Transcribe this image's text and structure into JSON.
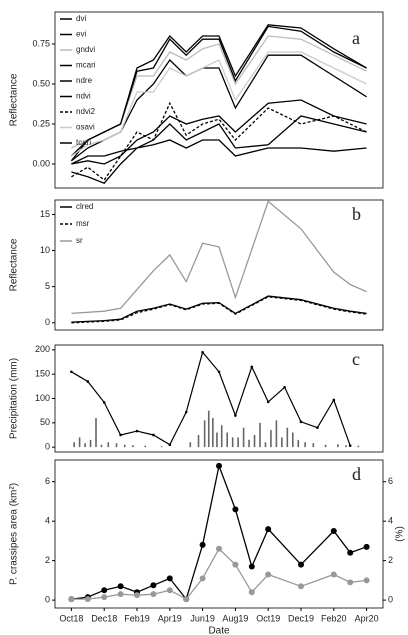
{
  "chart_data": [
    {
      "type": "line",
      "annotation": "a",
      "ylabel": "Reflectance",
      "xlim": [
        "2018-09",
        "2020-05"
      ],
      "x": [
        "2018-10",
        "2018-11",
        "2018-12",
        "2019-01",
        "2019-02",
        "2019-03",
        "2019-04",
        "2019-05",
        "2019-06",
        "2019-07",
        "2019-08",
        "2019-10",
        "2019-12",
        "2020-02",
        "2020-04"
      ],
      "ylim": [
        -0.15,
        0.95
      ],
      "yticks": [
        {
          "value": 0,
          "label": "0.00"
        },
        0.25,
        {
          "value": 0.5,
          "label": "0.50"
        },
        0.75
      ],
      "legend": "top-left",
      "series": [
        {
          "name": "dvi",
          "color": "#000000",
          "values": [
            0.05,
            0.15,
            0.2,
            0.25,
            0.6,
            0.65,
            0.8,
            0.7,
            0.8,
            0.8,
            0.55,
            0.87,
            0.85,
            0.72,
            0.6
          ]
        },
        {
          "name": "evi",
          "color": "#000000",
          "values": [
            0.02,
            0.1,
            0.15,
            0.2,
            0.4,
            0.5,
            0.65,
            0.55,
            0.6,
            0.6,
            0.35,
            0.68,
            0.68,
            0.55,
            0.42
          ]
        },
        {
          "name": "gndvi",
          "color": "#bbbbbb",
          "values": [
            0.1,
            0.15,
            0.2,
            0.25,
            0.55,
            0.55,
            0.7,
            0.65,
            0.72,
            0.75,
            0.5,
            0.8,
            0.78,
            0.68,
            0.58
          ]
        },
        {
          "name": "mcari",
          "color": "#000000",
          "values": [
            0.0,
            0.02,
            0.0,
            0.05,
            0.15,
            0.2,
            0.3,
            0.25,
            0.28,
            0.3,
            0.2,
            0.38,
            0.4,
            0.3,
            0.25
          ]
        },
        {
          "name": "ndre",
          "color": "#000000",
          "values": [
            0.0,
            0.05,
            0.05,
            0.08,
            0.1,
            0.12,
            0.15,
            0.1,
            0.15,
            0.15,
            0.05,
            0.1,
            0.1,
            0.08,
            0.1
          ]
        },
        {
          "name": "ndvi",
          "color": "#000000",
          "values": [
            0.02,
            0.15,
            0.2,
            0.25,
            0.58,
            0.6,
            0.78,
            0.68,
            0.78,
            0.78,
            0.52,
            0.86,
            0.83,
            0.7,
            0.6
          ]
        },
        {
          "name": "ndvi2",
          "color": "#000000",
          "dash": true,
          "values": [
            -0.08,
            -0.02,
            -0.1,
            0.05,
            0.2,
            0.15,
            0.38,
            0.18,
            0.25,
            0.28,
            0.15,
            0.35,
            0.25,
            0.3,
            0.2
          ]
        },
        {
          "name": "osavi",
          "color": "#cccccc",
          "values": [
            0.05,
            0.12,
            0.15,
            0.2,
            0.45,
            0.45,
            0.6,
            0.55,
            0.6,
            0.65,
            0.4,
            0.7,
            0.7,
            0.6,
            0.5
          ]
        },
        {
          "name": "tcari",
          "color": "#000000",
          "values": [
            -0.05,
            -0.08,
            -0.12,
            0.0,
            0.1,
            0.15,
            0.25,
            0.15,
            0.2,
            0.25,
            0.1,
            0.12,
            0.3,
            0.25,
            0.2
          ]
        }
      ]
    },
    {
      "type": "line",
      "annotation": "b",
      "ylabel": "Reflectance",
      "xlim": [
        "2018-09",
        "2020-05"
      ],
      "x": [
        "2018-10",
        "2018-12",
        "2019-01",
        "2019-02",
        "2019-03",
        "2019-04",
        "2019-05",
        "2019-06",
        "2019-07",
        "2019-08",
        "2019-10",
        "2019-12",
        "2020-02",
        "2020-03",
        "2020-04"
      ],
      "ylim": [
        -1,
        17
      ],
      "yticks": [
        0,
        5,
        10,
        15
      ],
      "legend": "top-left",
      "series": [
        {
          "name": "clred",
          "color": "#000000",
          "values": [
            0.1,
            0.3,
            0.5,
            1.6,
            2.0,
            2.6,
            1.9,
            2.7,
            2.8,
            1.3,
            3.7,
            3.2,
            2.0,
            1.6,
            1.3
          ]
        },
        {
          "name": "msr",
          "color": "#000000",
          "dash": true,
          "values": [
            0.0,
            0.2,
            0.4,
            1.4,
            1.9,
            2.5,
            1.8,
            2.6,
            2.7,
            1.2,
            3.6,
            3.1,
            1.9,
            1.5,
            1.2
          ]
        },
        {
          "name": "sr",
          "color": "#999999",
          "values": [
            1.3,
            1.6,
            2.0,
            4.6,
            7.2,
            9.4,
            5.7,
            11,
            10.5,
            3.5,
            16.8,
            13,
            7,
            5.3,
            4.3
          ]
        }
      ]
    },
    {
      "type": "bar",
      "annotation": "c",
      "ylabel": "Precipitation (mm)",
      "xlim": [
        "2018-09",
        "2020-05"
      ],
      "ylim": [
        -10,
        210
      ],
      "yticks": [
        0,
        50,
        100,
        150,
        200
      ],
      "bars": {
        "color": "#666666",
        "x": [
          "2018-10",
          "2018-10",
          "2018-10",
          "2018-11",
          "2018-11",
          "2018-11",
          "2018-12",
          "2018-12",
          "2019-01",
          "2019-01",
          "2019-02",
          "2019-03",
          "2019-05",
          "2019-05",
          "2019-06",
          "2019-06",
          "2019-06",
          "2019-06",
          "2019-07",
          "2019-07",
          "2019-07",
          "2019-08",
          "2019-08",
          "2019-08",
          "2019-09",
          "2019-09",
          "2019-09",
          "2019-10",
          "2019-10",
          "2019-10",
          "2019-11",
          "2019-11",
          "2019-11",
          "2019-12",
          "2019-12",
          "2020-01",
          "2020-02",
          "2020-02",
          "2020-03"
        ],
        "values": [
          10,
          20,
          8,
          15,
          60,
          5,
          10,
          8,
          5,
          4,
          3,
          2,
          10,
          25,
          55,
          75,
          60,
          30,
          45,
          30,
          20,
          20,
          40,
          15,
          25,
          50,
          10,
          35,
          55,
          20,
          40,
          30,
          15,
          10,
          8,
          5,
          6,
          4,
          3
        ]
      },
      "line": {
        "color": "#000000",
        "x": [
          "2018-10",
          "2018-11",
          "2018-12",
          "2019-01",
          "2019-02",
          "2019-03",
          "2019-04",
          "2019-05",
          "2019-06",
          "2019-07",
          "2019-08",
          "2019-09",
          "2019-10",
          "2019-11",
          "2019-12",
          "2020-01",
          "2020-02",
          "2020-03"
        ],
        "values": [
          155,
          135,
          92,
          25,
          33,
          25,
          5,
          72,
          195,
          155,
          65,
          165,
          93,
          123,
          52,
          40,
          97,
          3
        ]
      }
    },
    {
      "type": "line",
      "annotation": "d",
      "ylabel": "P. crassipes area (km²)",
      "y2label": "(%)",
      "xlabel": "Date",
      "xlim": [
        "2018-09",
        "2020-05"
      ],
      "xticks": [
        {
          "value": "2018-10",
          "label": "Oct18"
        },
        {
          "value": "2018-12",
          "label": "Dec18"
        },
        {
          "value": "2019-02",
          "label": "Feb19"
        },
        {
          "value": "2019-04",
          "label": "Apr19"
        },
        {
          "value": "2019-06",
          "label": "Jun19"
        },
        {
          "value": "2019-08",
          "label": "Aug19"
        },
        {
          "value": "2019-10",
          "label": "Oct19"
        },
        {
          "value": "2019-12",
          "label": "Dec19"
        },
        {
          "value": "2020-02",
          "label": "Feb20"
        },
        {
          "value": "2020-04",
          "label": "Apr20"
        }
      ],
      "x": [
        "2018-10",
        "2018-11",
        "2018-12",
        "2019-01",
        "2019-02",
        "2019-03",
        "2019-04",
        "2019-05",
        "2019-06",
        "2019-07",
        "2019-08",
        "2019-09",
        "2019-10",
        "2019-12",
        "2020-02",
        "2020-03",
        "2020-04"
      ],
      "ylim": [
        -0.4,
        7.1
      ],
      "yticks": [
        0,
        2,
        4,
        6
      ],
      "y2lim": [
        -0.4,
        7.1
      ],
      "y2ticks": [
        0,
        2,
        4,
        6
      ],
      "markers": true,
      "series": [
        {
          "color": "#000000",
          "values": [
            0.05,
            0.15,
            0.5,
            0.7,
            0.4,
            0.75,
            1.1,
            0.05,
            2.8,
            6.8,
            4.6,
            1.7,
            3.6,
            1.8,
            3.5,
            2.4,
            2.7
          ]
        },
        {
          "color": "#999999",
          "axis": "y2",
          "values": [
            0.05,
            0.05,
            0.15,
            0.3,
            0.25,
            0.3,
            0.5,
            0.05,
            1.1,
            2.6,
            1.8,
            0.4,
            1.3,
            0.7,
            1.3,
            0.9,
            1.0
          ]
        }
      ]
    }
  ]
}
